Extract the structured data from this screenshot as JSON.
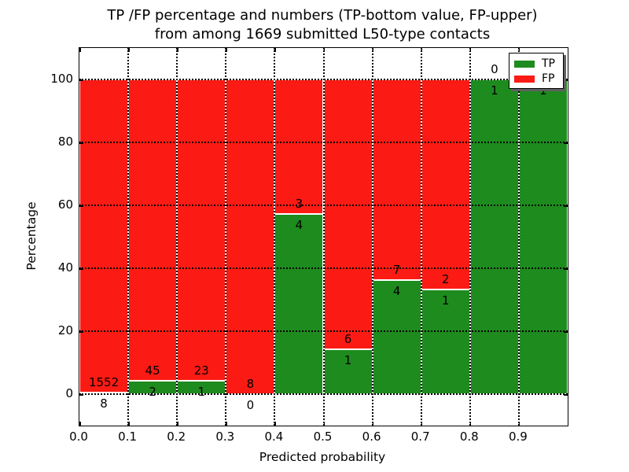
{
  "chart_data": {
    "type": "bar",
    "stacked": true,
    "normalized_to_percent": true,
    "title_line1": "TP /FP percentage and numbers (TP-bottom value, FP-upper)",
    "title_line2": "from among 1669 submitted L50-type contacts",
    "xlabel": "Predicted probability",
    "ylabel": "Percentage",
    "xlim": [
      0.0,
      1.0
    ],
    "ylim": [
      -10,
      110
    ],
    "x_ticks": {
      "values": [
        0.0,
        0.1,
        0.2,
        0.3,
        0.4,
        0.5,
        0.6,
        0.7,
        0.8,
        0.9
      ],
      "labels": [
        "0.0",
        "0.1",
        "0.2",
        "0.3",
        "0.4",
        "0.5",
        "0.6",
        "0.7",
        "0.8",
        "0.9"
      ]
    },
    "y_ticks": {
      "values": [
        0,
        20,
        40,
        60,
        80,
        100
      ],
      "labels": [
        "0",
        "20",
        "40",
        "60",
        "80",
        "100"
      ]
    },
    "grid": "dotted black, drawn above bars",
    "legend": {
      "position": "upper right",
      "entries": [
        {
          "label": "TP",
          "color": "#1e8b1e"
        },
        {
          "label": "FP",
          "color": "#fb1b14"
        }
      ]
    },
    "annotation_rule": "each bin labeled with raw counts: FP count above the TP/FP boundary, TP count below it",
    "bins": [
      {
        "x_start": 0.0,
        "x_end": 0.1,
        "tp": 8,
        "fp": 1552
      },
      {
        "x_start": 0.1,
        "x_end": 0.2,
        "tp": 2,
        "fp": 45
      },
      {
        "x_start": 0.2,
        "x_end": 0.3,
        "tp": 1,
        "fp": 23
      },
      {
        "x_start": 0.3,
        "x_end": 0.4,
        "tp": 0,
        "fp": 8
      },
      {
        "x_start": 0.4,
        "x_end": 0.5,
        "tp": 4,
        "fp": 3
      },
      {
        "x_start": 0.5,
        "x_end": 0.6,
        "tp": 1,
        "fp": 6
      },
      {
        "x_start": 0.6,
        "x_end": 0.7,
        "tp": 4,
        "fp": 7
      },
      {
        "x_start": 0.7,
        "x_end": 0.8,
        "tp": 1,
        "fp": 2
      },
      {
        "x_start": 0.8,
        "x_end": 0.9,
        "tp": 1,
        "fp": 0
      },
      {
        "x_start": 0.9,
        "x_end": 1.0,
        "tp": 1,
        "fp": 0
      }
    ],
    "total_contacts": 1669
  }
}
